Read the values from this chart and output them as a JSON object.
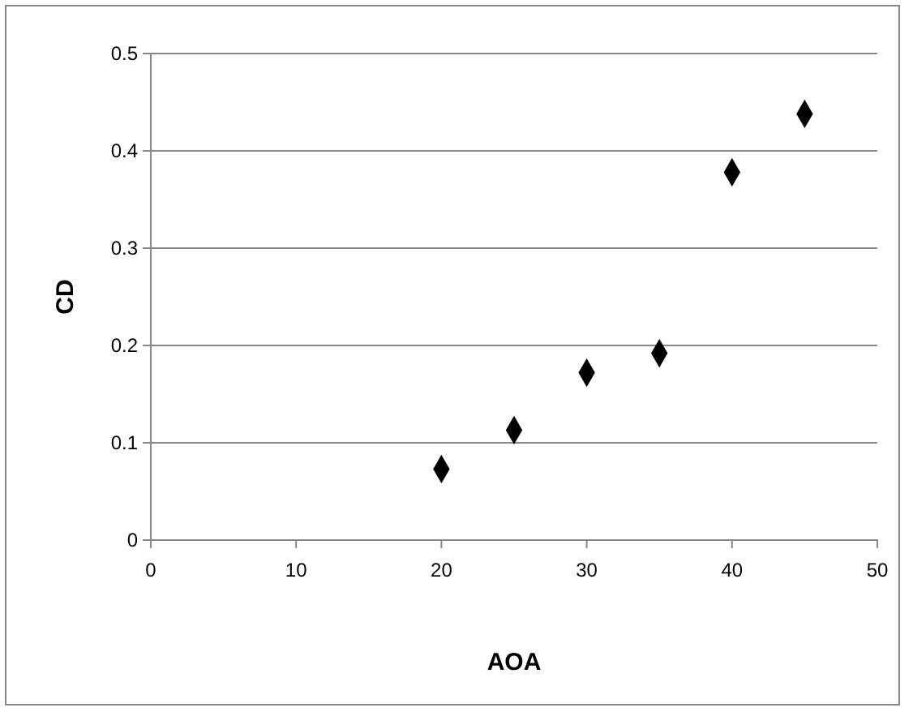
{
  "chart_data": {
    "type": "scatter",
    "xlabel": "AOA",
    "ylabel": "CD",
    "x": [
      20,
      25,
      30,
      35,
      40,
      45
    ],
    "values": [
      0.073,
      0.113,
      0.172,
      0.192,
      0.378,
      0.438
    ],
    "color": "#000000",
    "marker": "diamond",
    "xlim": [
      0,
      50
    ],
    "xticks": [
      0,
      10,
      20,
      30,
      40,
      50
    ],
    "ylim": [
      0,
      0.5
    ],
    "yticks": [
      0,
      0.1,
      0.2,
      0.3,
      0.4,
      0.5
    ],
    "grid": "y"
  }
}
